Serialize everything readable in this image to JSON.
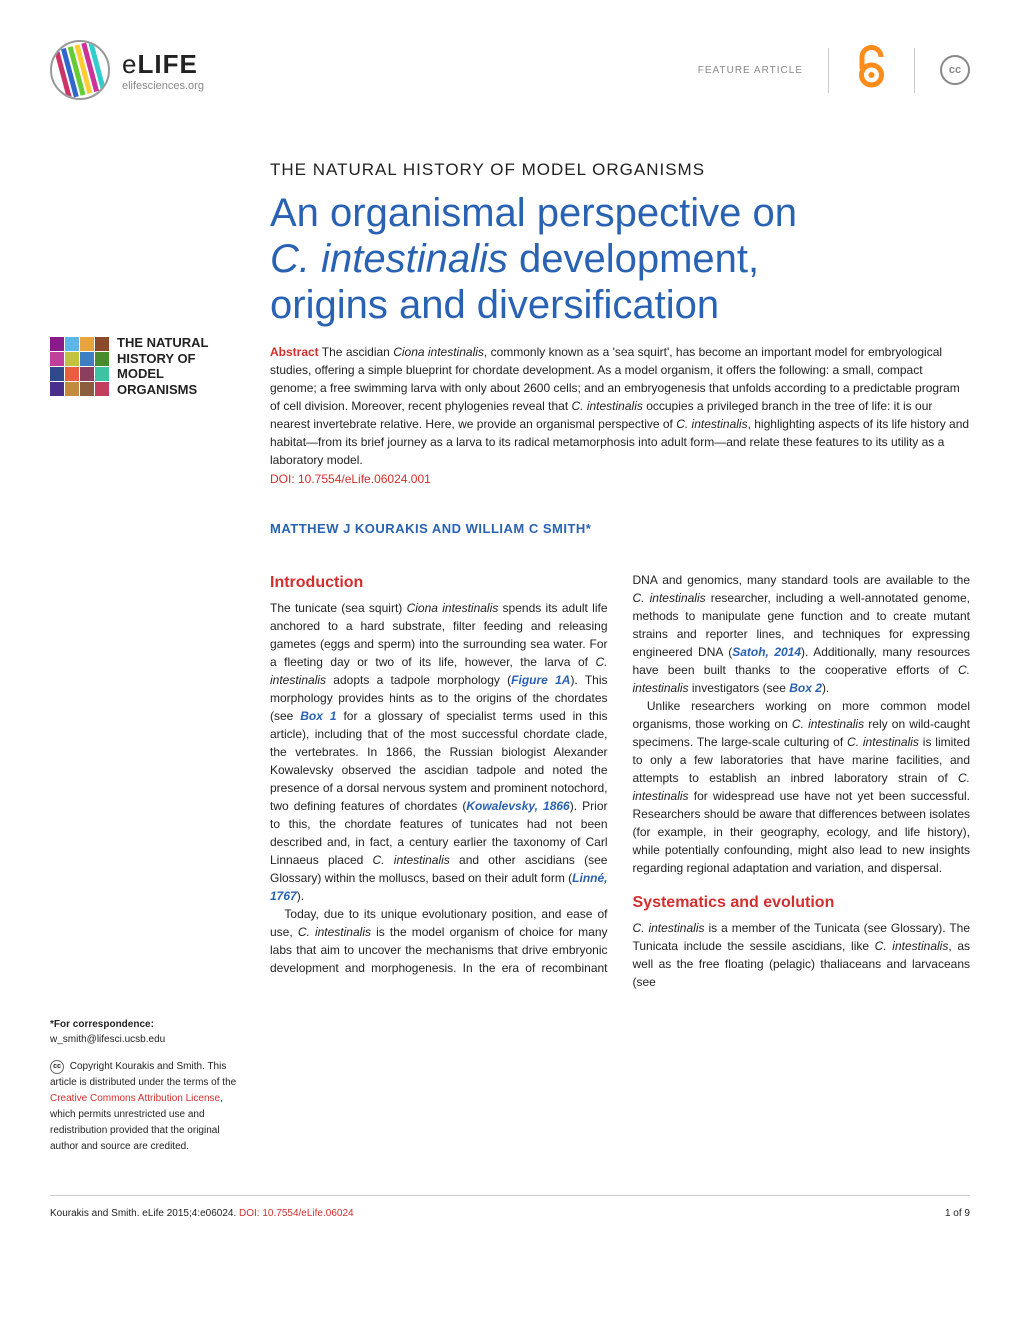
{
  "header": {
    "journal_name_prefix": "e",
    "journal_name_main": "LIFE",
    "journal_url": "elifesciences.org",
    "article_type": "FEATURE ARTICLE",
    "cc_label": "cc",
    "logo_colors": [
      "#cc3366",
      "#3366cc",
      "#66cc33",
      "#ffcc33",
      "#cc3399",
      "#33cccc"
    ]
  },
  "overline": "THE NATURAL HISTORY OF MODEL ORGANISMS",
  "title_line1": "An organismal perspective on",
  "title_italic": "C. intestinalis",
  "title_line2_rest": " development,",
  "title_line3": "origins and diversification",
  "abstract": {
    "label": "Abstract",
    "text_1": " The ascidian ",
    "italic_1": "Ciona intestinalis",
    "text_2": ", commonly known as a 'sea squirt', has become an important model for embryological studies, offering a simple blueprint for chordate development. As a model organism, it offers the following: a small, compact genome; a free swimming larva with only about 2600 cells; and an embryogenesis that unfolds according to a predictable program of cell division. Moreover, recent phylogenies reveal that ",
    "italic_2": "C. intestinalis",
    "text_3": " occupies a privileged branch in the tree of life: it is our nearest invertebrate relative. Here, we provide an organismal perspective of ",
    "italic_3": "C. intestinalis",
    "text_4": ", highlighting aspects of its life history and habitat—from its brief journey as a larva to its radical metamorphosis into adult form—and relate these features to its utility as a laboratory model."
  },
  "doi": "DOI: 10.7554/eLife.06024.001",
  "authors": "MATTHEW J KOURAKIS AND WILLIAM C SMITH*",
  "sidebar": {
    "collection_title": "THE NATURAL HISTORY OF MODEL ORGANISMS",
    "grid_colors": [
      "#8b1a89",
      "#5eb5e8",
      "#e8a23e",
      "#8b4a2e",
      "#c23e9c",
      "#c2c23e",
      "#3e7fc2",
      "#4a8b2e",
      "#2e4a8b",
      "#e85e3e",
      "#8b3e5e",
      "#3ec2a2",
      "#4a2e8b",
      "#c28b3e",
      "#8b5e3e",
      "#c23e5e"
    ],
    "correspondence_label": "*For correspondence:",
    "correspondence_email": "w_smith@lifesci.ucsb.edu",
    "copyright_1": " Copyright Kourakis and Smith. This article is distributed under the terms of the ",
    "license_link": "Creative Commons Attribution License",
    "copyright_2": ", which permits unrestricted use and redistribution provided that the original author and source are credited."
  },
  "sections": {
    "intro_heading": "Introduction",
    "intro_p1_1": "The tunicate (sea squirt) ",
    "intro_p1_italic1": "Ciona intestinalis",
    "intro_p1_2": " spends its adult life anchored to a hard substrate, filter feeding and releasing gametes (eggs and sperm) into the surrounding sea water. For a fleeting day or two of its life, however, the larva of ",
    "intro_p1_italic2": "C. intestinalis",
    "intro_p1_3": " adopts a tadpole morphology (",
    "intro_p1_link1": "Figure 1A",
    "intro_p1_4": "). This morphology provides hints as to the origins of the chordates (see ",
    "intro_p1_link2": "Box 1",
    "intro_p1_5": " for a glossary of specialist terms used in this article), including that of the most successful chordate clade, the vertebrates. In 1866, the Russian biologist Alexander Kowalevsky observed the ascidian tadpole and noted the presence of a dorsal nervous system and prominent notochord, two defining features of chordates (",
    "intro_p1_link3": "Kowalevsky, 1866",
    "intro_p1_6": "). Prior to this, the chordate features of tunicates had not been described and, in fact, a century earlier the taxonomy of Carl Linnaeus placed ",
    "intro_p1_italic3": "C. intestinalis",
    "intro_p1_7": " and other ascidians (see Glossary) within the molluscs, based on their adult form (",
    "intro_p1_link4": "Linné, 1767",
    "intro_p1_8": ").",
    "intro_p2_1": "Today, due to its unique evolutionary position, and ease of use, ",
    "intro_p2_italic1": "C. intestinalis",
    "intro_p2_2": " is the model organism of choice for many labs that aim to uncover the mechanisms that drive embryonic development and morphogenesis. In the era of recombinant DNA and genomics, many standard tools are available to the ",
    "intro_p2_italic2": "C. intestinalis",
    "intro_p2_3": " researcher, including a well-annotated genome, methods to manipulate gene function and to create mutant strains and reporter lines, and techniques for expressing engineered DNA (",
    "intro_p2_link1": "Satoh, 2014",
    "intro_p2_4": "). Additionally, many resources have been built thanks to the cooperative efforts of ",
    "intro_p2_italic3": "C. intestinalis",
    "intro_p2_5": " investigators (see ",
    "intro_p2_link2": "Box 2",
    "intro_p2_6": ").",
    "intro_p3_1": "Unlike researchers working on more common model organisms, those working on ",
    "intro_p3_italic1": "C. intestinalis",
    "intro_p3_2": " rely on wild-caught specimens. The large-scale culturing of ",
    "intro_p3_italic2": "C. intestinalis",
    "intro_p3_3": " is limited to only a few laboratories that have marine facilities, and attempts to establish an inbred laboratory strain of ",
    "intro_p3_italic3": "C. intestinalis",
    "intro_p3_4": " for widespread use have not yet been successful. Researchers should be aware that differences between isolates (for example, in their geography, ecology, and life history), while potentially confounding, might also lead to new insights regarding regional adaptation and variation, and dispersal.",
    "sys_heading": "Systematics and evolution",
    "sys_p1_italic1": "C. intestinalis",
    "sys_p1_1": " is a member of the Tunicata (see Glossary). The Tunicata include the sessile ascidians, like ",
    "sys_p1_italic2": "C. intestinalis",
    "sys_p1_2": ", as well as the free floating (pelagic) thaliaceans and larvaceans (see"
  },
  "footer": {
    "citation_1": "Kourakis and Smith. eLife 2015;4:e06024. ",
    "citation_doi": "DOI: 10.7554/eLife.06024",
    "page": "1 of 9"
  },
  "colors": {
    "blue": "#2962b3",
    "red": "#d32f2f",
    "orange": "#ff8c1a"
  }
}
